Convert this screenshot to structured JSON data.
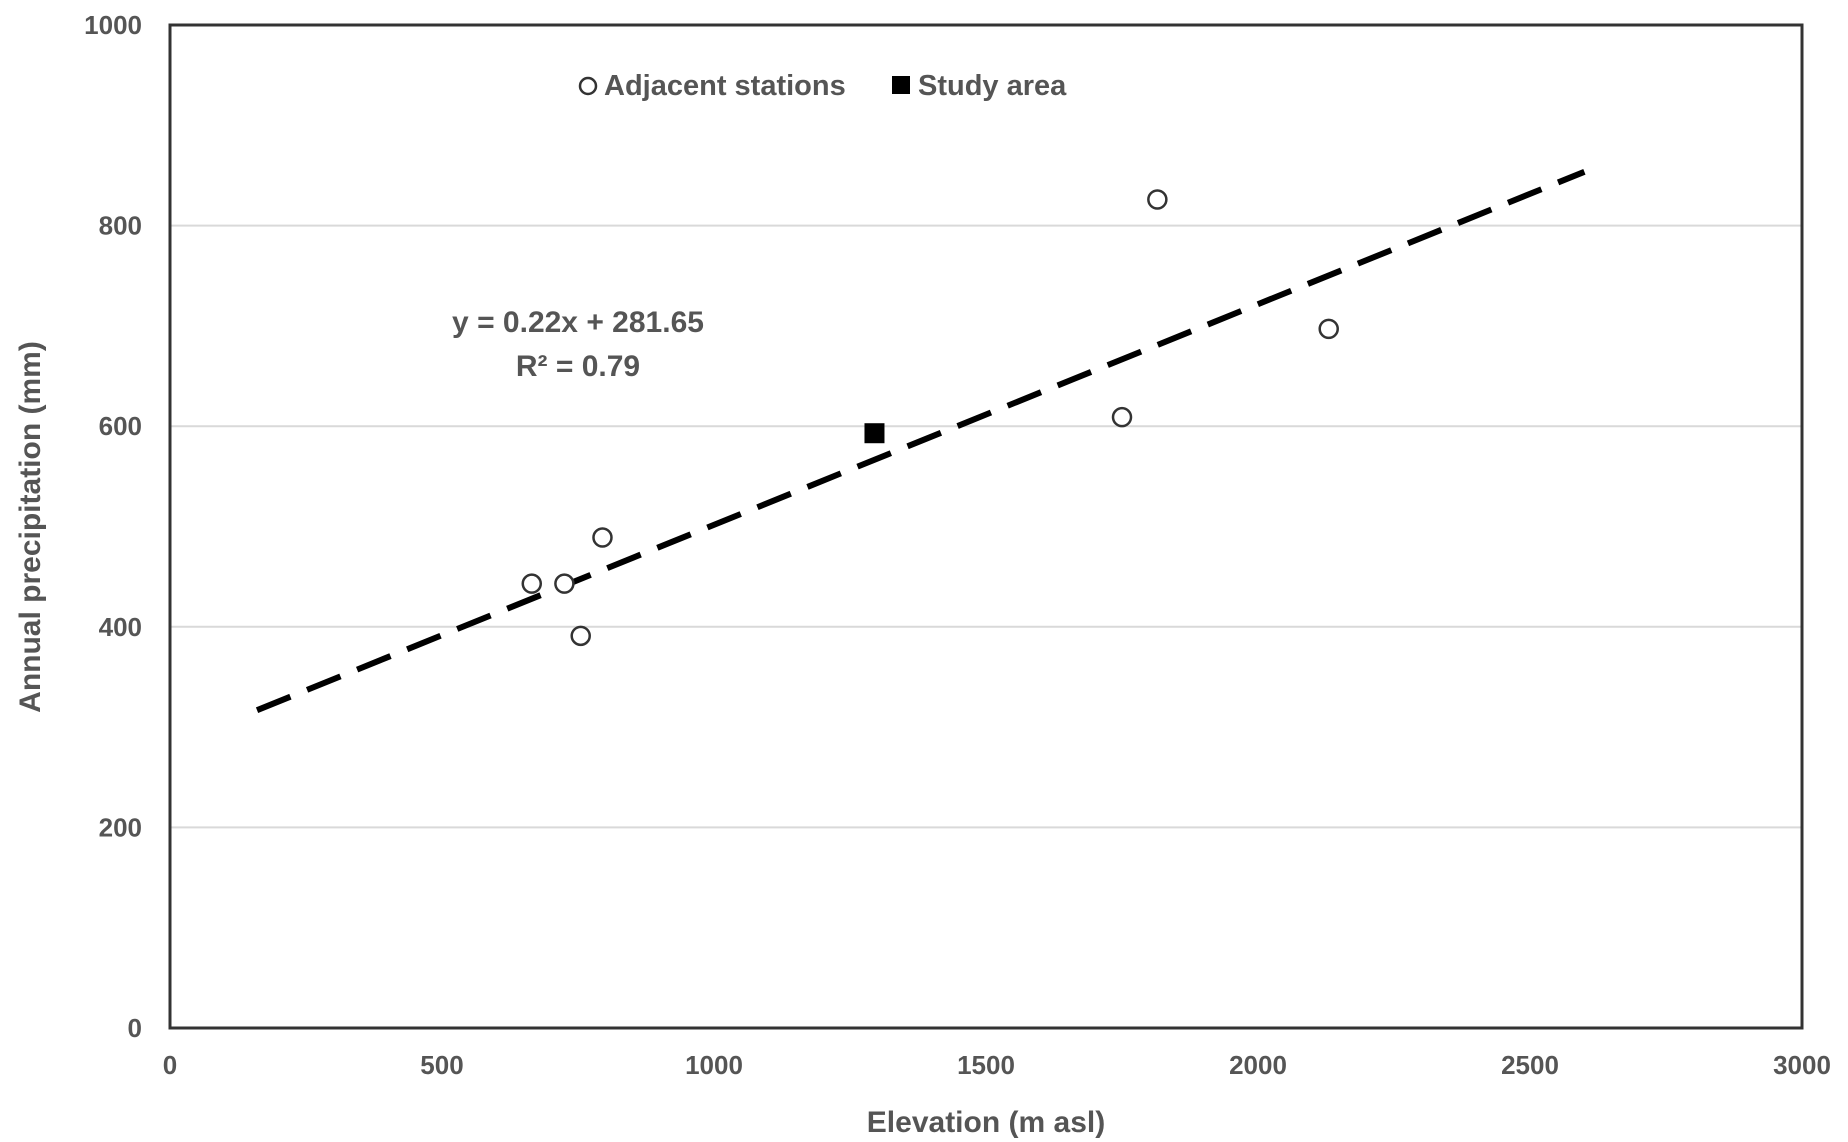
{
  "chart_data": {
    "type": "scatter",
    "xlabel": "Elevation  (m asl)",
    "ylabel": "Annual precipitation  (mm)",
    "xlim": [
      0,
      3000
    ],
    "ylim": [
      0,
      1000
    ],
    "x_ticks": [
      0,
      500,
      1000,
      1500,
      2000,
      2500,
      3000
    ],
    "y_ticks": [
      0,
      200,
      400,
      600,
      800,
      1000
    ],
    "x_tick_labels": [
      "0",
      "500",
      "1000",
      "1500",
      "2000",
      "2500",
      "3000"
    ],
    "y_tick_labels": [
      "0",
      "200",
      "400",
      "600",
      "800",
      "1000"
    ],
    "grid": "horizontal",
    "legend_position": "top-center",
    "series": [
      {
        "name": "Adjacent stations",
        "marker": "open-circle",
        "points": [
          {
            "x": 665,
            "y": 443
          },
          {
            "x": 725,
            "y": 443
          },
          {
            "x": 755,
            "y": 391
          },
          {
            "x": 795,
            "y": 489
          },
          {
            "x": 1750,
            "y": 609
          },
          {
            "x": 1815,
            "y": 826
          },
          {
            "x": 2130,
            "y": 697
          }
        ]
      },
      {
        "name": "Study area",
        "marker": "filled-square",
        "points": [
          {
            "x": 1295,
            "y": 593
          }
        ]
      }
    ],
    "trendline": {
      "style": "dashed",
      "color": "#000000",
      "slope": 0.22,
      "intercept": 281.65,
      "x_range": [
        160,
        2600
      ]
    },
    "annotation": {
      "equation": "y = 0.22x + 281.65",
      "r_squared": "R² = 0.79"
    }
  }
}
